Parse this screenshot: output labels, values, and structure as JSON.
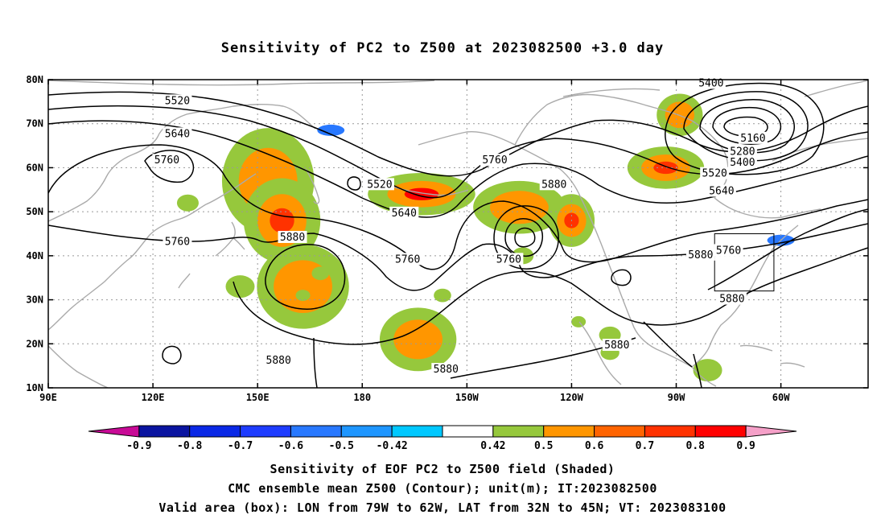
{
  "title": "Sensitivity of PC2 to Z500 at 2023082500 +3.0 day",
  "map": {
    "lon_ticks": [
      {
        "lon": 90,
        "label": "90E"
      },
      {
        "lon": 120,
        "label": "120E"
      },
      {
        "lon": 150,
        "label": "150E"
      },
      {
        "lon": 180,
        "label": "180"
      },
      {
        "lon": 210,
        "label": "150W"
      },
      {
        "lon": 240,
        "label": "120W"
      },
      {
        "lon": 270,
        "label": "90W"
      },
      {
        "lon": 300,
        "label": "60W"
      }
    ],
    "lat_ticks": [
      {
        "lat": 80,
        "label": "80N"
      },
      {
        "lat": 70,
        "label": "70N"
      },
      {
        "lat": 60,
        "label": "60N"
      },
      {
        "lat": 50,
        "label": "50N"
      },
      {
        "lat": 40,
        "label": "40N"
      },
      {
        "lat": 30,
        "label": "30N"
      },
      {
        "lat": 20,
        "label": "20N"
      },
      {
        "lat": 10,
        "label": "10N"
      }
    ],
    "lon_range": [
      90,
      325
    ],
    "lat_range": [
      10,
      80
    ],
    "grid": true,
    "valid_box": {
      "lon_min": 281,
      "lon_max": 298,
      "lat_min": 32,
      "lat_max": 45
    },
    "contour_labels": [
      {
        "text": "5520",
        "lon": 127,
        "lat": 75
      },
      {
        "text": "5640",
        "lon": 127,
        "lat": 67.5
      },
      {
        "text": "5760",
        "lon": 124,
        "lat": 61.5
      },
      {
        "text": "5760",
        "lon": 127,
        "lat": 43
      },
      {
        "text": "5880",
        "lon": 160,
        "lat": 44
      },
      {
        "text": "5520",
        "lon": 185,
        "lat": 56
      },
      {
        "text": "5640",
        "lon": 192,
        "lat": 49.5
      },
      {
        "text": "5760",
        "lon": 193,
        "lat": 39
      },
      {
        "text": "5760",
        "lon": 218,
        "lat": 61.5
      },
      {
        "text": "5880",
        "lon": 235,
        "lat": 56
      },
      {
        "text": "5760",
        "lon": 222,
        "lat": 39
      },
      {
        "text": "5880",
        "lon": 277,
        "lat": 40
      },
      {
        "text": "5880",
        "lon": 156,
        "lat": 16
      },
      {
        "text": "5880",
        "lon": 204,
        "lat": 14
      },
      {
        "text": "5880",
        "lon": 253,
        "lat": 19.5
      },
      {
        "text": "5880",
        "lon": 286,
        "lat": 30
      },
      {
        "text": "5760",
        "lon": 285,
        "lat": 41
      },
      {
        "text": "5400",
        "lon": 280,
        "lat": 79
      },
      {
        "text": "5160",
        "lon": 292,
        "lat": 66.5
      },
      {
        "text": "5280",
        "lon": 289,
        "lat": 63.5
      },
      {
        "text": "5400",
        "lon": 289,
        "lat": 61
      },
      {
        "text": "5520",
        "lon": 281,
        "lat": 58.5
      },
      {
        "text": "5640",
        "lon": 283,
        "lat": 54.5
      }
    ],
    "shaded_regions": [
      {
        "name": "siberia",
        "value": 0.6,
        "lon": 153,
        "lat": 57,
        "rlon": 6,
        "rlat": 5
      },
      {
        "name": "kamchatka-west",
        "value": 0.7,
        "lon": 157,
        "lat": 48,
        "rlon": 5,
        "rlat": 4
      },
      {
        "name": "nw-pacific",
        "value": 0.5,
        "lon": 163,
        "lat": 33,
        "rlon": 6,
        "rlat": 4
      },
      {
        "name": "aleutian",
        "value": 0.8,
        "lon": 197,
        "lat": 54,
        "rlon": 7,
        "rlat": 2
      },
      {
        "name": "gulf-alaska",
        "value": 0.6,
        "lon": 225,
        "lat": 51,
        "rlon": 6,
        "rlat": 2.5
      },
      {
        "name": "hawaii-north",
        "value": 0.6,
        "lon": 196,
        "lat": 21,
        "rlon": 5,
        "rlat": 3
      },
      {
        "name": "bc-coast",
        "value": 0.7,
        "lon": 240,
        "lat": 48,
        "rlon": 3,
        "rlat": 2.5
      },
      {
        "name": "hudson",
        "value": 0.7,
        "lon": 267,
        "lat": 60,
        "rlon": 5,
        "rlat": 2
      },
      {
        "name": "baffin",
        "value": 0.6,
        "lon": 271,
        "lat": 72,
        "rlon": 3,
        "rlat": 2
      }
    ],
    "negative_regions": [
      {
        "name": "taymyr",
        "value": -0.5,
        "lon": 171,
        "lat": 68.5
      },
      {
        "name": "nova-scotia",
        "value": -0.5,
        "lon": 300,
        "lat": 43.5
      }
    ]
  },
  "colorbar": {
    "colors": [
      "#c80a96",
      "#0a14a0",
      "#0a28e6",
      "#1e3cff",
      "#2878ff",
      "#1e96ff",
      "#00c8ff",
      "#ffffff",
      "#96c83c",
      "#ff9600",
      "#ff6400",
      "#ff3200",
      "#ff0000",
      "#f5a0c8"
    ],
    "labels": [
      "-0.9",
      "-0.8",
      "-0.7",
      "-0.6",
      "-0.5",
      "-0.42",
      "0.42",
      "0.5",
      "0.6",
      "0.7",
      "0.8",
      "0.9"
    ]
  },
  "captions": {
    "line1": "Sensitivity of EOF PC2 to Z500 field (Shaded)",
    "line2": "CMC ensemble mean Z500 (Contour); unit(m); IT:2023082500",
    "line3": "Valid area (box): LON from 79W to 62W, LAT from 32N to 45N; VT: 2023083100"
  }
}
